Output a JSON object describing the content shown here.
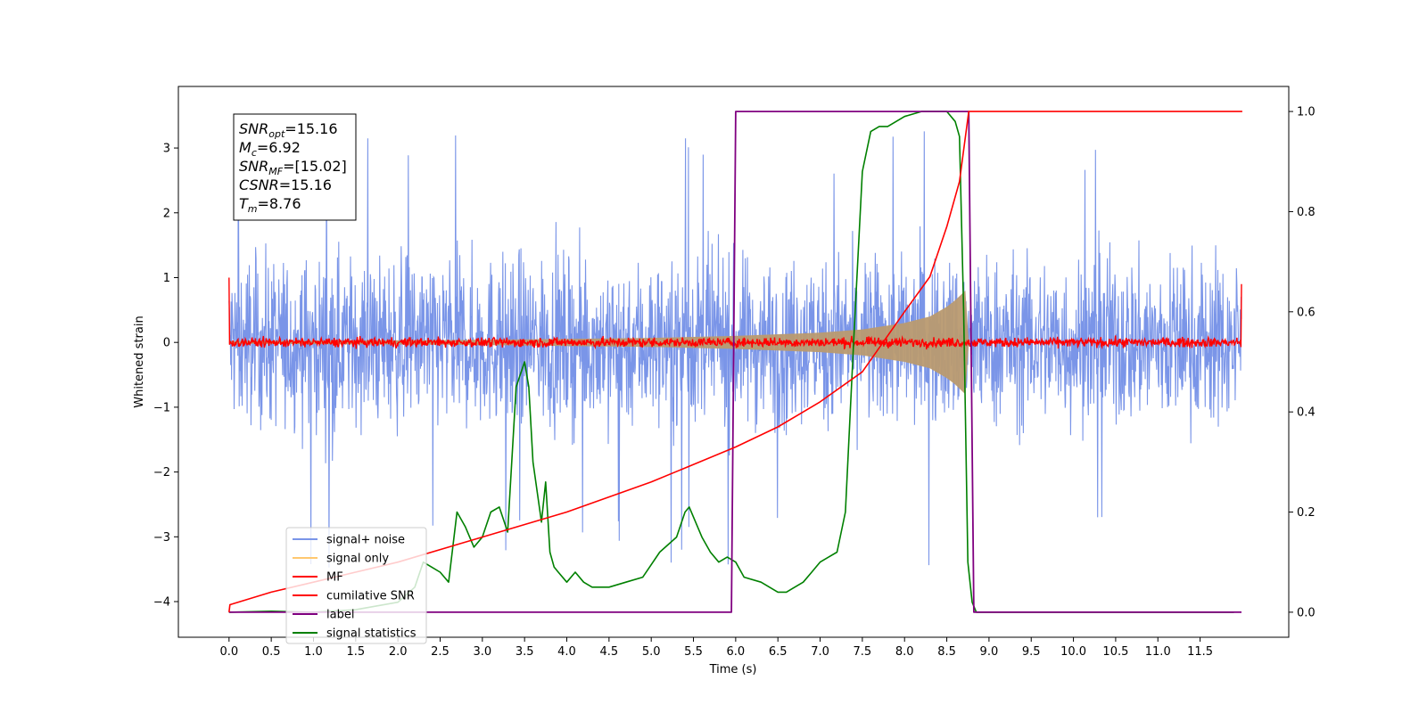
{
  "chart_data": {
    "type": "line",
    "xlabel": "Time (s)",
    "ylabel": "Whitened strain",
    "y2label": "",
    "xlim": [
      -0.6,
      12.55
    ],
    "ylim": [
      -4.55,
      3.95
    ],
    "y2lim": [
      -0.05,
      1.05
    ],
    "x_ticks": [
      0.0,
      0.5,
      1.0,
      1.5,
      2.0,
      2.5,
      3.0,
      3.5,
      4.0,
      4.5,
      5.0,
      5.5,
      6.0,
      6.5,
      7.0,
      7.5,
      8.0,
      8.5,
      9.0,
      9.5,
      10.0,
      10.5,
      11.0,
      11.5
    ],
    "x_tick_labels": [
      "0.0",
      "0.5",
      "1.0",
      "1.5",
      "2.0",
      "2.5",
      "3.0",
      "3.5",
      "4.0",
      "4.5",
      "5.0",
      "5.5",
      "6.0",
      "6.5",
      "7.0",
      "7.5",
      "8.0",
      "8.5",
      "9.0",
      "9.5",
      "10.0",
      "10.5",
      "11.0",
      "11.5"
    ],
    "y_ticks": [
      3,
      2,
      1,
      0,
      -1,
      -2,
      -3,
      -4
    ],
    "y_tick_labels": [
      "3",
      "2",
      "1",
      "0",
      "−1",
      "−2",
      "−3",
      "−4"
    ],
    "y2_ticks": [
      1.0,
      0.8,
      0.6,
      0.4,
      0.2,
      0.0
    ],
    "y2_tick_labels": [
      "1.0",
      "0.8",
      "0.6",
      "0.4",
      "0.2",
      "0.0"
    ],
    "grid": false,
    "legend_position": "lower-left",
    "annotation": {
      "lines": [
        {
          "main": "SNR",
          "sub": "opt",
          "value": "=15.16"
        },
        {
          "main": "M",
          "sub": "c",
          "value": "=6.92"
        },
        {
          "main": "SNR",
          "sub": "MF",
          "value": "=[15.02]"
        },
        {
          "main": "CSNR",
          "sub": "",
          "value": "=15.16"
        },
        {
          "main": "T",
          "sub": "m",
          "value": "=8.76"
        }
      ]
    },
    "series": [
      {
        "name": "signal+ noise",
        "axis": "left",
        "color": "#7a95e8",
        "kind": "noise_band",
        "x_range": [
          0.0,
          11.99
        ],
        "typical_amplitude": 1.5,
        "max_peaks": [
          3.6,
          -4.15
        ]
      },
      {
        "name": "signal only",
        "axis": "left",
        "color": "#ffc870",
        "kind": "chirp_envelope",
        "x": [
          0.0,
          3.0,
          5.0,
          6.0,
          7.0,
          7.5,
          8.0,
          8.3,
          8.5,
          8.6,
          8.72,
          8.76
        ],
        "amplitude": [
          0.02,
          0.04,
          0.07,
          0.1,
          0.15,
          0.2,
          0.3,
          0.4,
          0.55,
          0.65,
          0.8,
          0.0
        ]
      },
      {
        "name": "MF",
        "axis": "left",
        "color": "#ff0000",
        "kind": "noise_line",
        "x_range": [
          0.0,
          11.99
        ],
        "typical_amplitude": 0.07
      },
      {
        "name": "cumilative SNR",
        "axis": "right",
        "color": "#ff0000",
        "x": [
          0.0,
          0.01,
          0.5,
          1.0,
          2.0,
          3.0,
          4.0,
          5.0,
          6.0,
          6.5,
          7.0,
          7.5,
          8.0,
          8.3,
          8.5,
          8.65,
          8.76,
          12.0
        ],
        "y": [
          0.0,
          0.015,
          0.04,
          0.06,
          0.1,
          0.15,
          0.2,
          0.26,
          0.33,
          0.37,
          0.42,
          0.48,
          0.6,
          0.67,
          0.77,
          0.86,
          1.0,
          1.0
        ]
      },
      {
        "name": "label",
        "axis": "right",
        "color": "#800080",
        "x": [
          0.0,
          5.95,
          6.0,
          8.76,
          8.82,
          11.99
        ],
        "y": [
          0.0,
          0.0,
          1.0,
          1.0,
          0.0,
          0.0
        ]
      },
      {
        "name": "signal statistics",
        "axis": "right",
        "color": "#008000",
        "x": [
          0.0,
          0.5,
          1.0,
          1.5,
          2.0,
          2.2,
          2.3,
          2.4,
          2.5,
          2.6,
          2.7,
          2.8,
          2.9,
          3.0,
          3.1,
          3.2,
          3.3,
          3.4,
          3.5,
          3.55,
          3.6,
          3.7,
          3.75,
          3.8,
          3.85,
          3.9,
          4.0,
          4.1,
          4.2,
          4.3,
          4.5,
          4.7,
          4.9,
          5.1,
          5.3,
          5.4,
          5.45,
          5.6,
          5.7,
          5.8,
          5.9,
          6.0,
          6.1,
          6.3,
          6.5,
          6.6,
          6.7,
          6.8,
          6.9,
          7.0,
          7.1,
          7.2,
          7.3,
          7.4,
          7.5,
          7.6,
          7.7,
          7.8,
          8.0,
          8.2,
          8.3,
          8.4,
          8.5,
          8.6,
          8.65,
          8.7,
          8.75,
          8.8,
          8.85,
          9.0,
          10.0,
          11.0,
          11.9
        ],
        "y": [
          0.0,
          0.002,
          0.0,
          0.005,
          0.02,
          0.05,
          0.1,
          0.09,
          0.08,
          0.06,
          0.2,
          0.17,
          0.13,
          0.15,
          0.2,
          0.21,
          0.16,
          0.45,
          0.5,
          0.45,
          0.3,
          0.18,
          0.26,
          0.12,
          0.09,
          0.08,
          0.06,
          0.08,
          0.06,
          0.05,
          0.05,
          0.06,
          0.07,
          0.12,
          0.15,
          0.2,
          0.21,
          0.15,
          0.12,
          0.1,
          0.11,
          0.1,
          0.07,
          0.06,
          0.04,
          0.04,
          0.05,
          0.06,
          0.08,
          0.1,
          0.11,
          0.12,
          0.2,
          0.55,
          0.88,
          0.96,
          0.97,
          0.97,
          0.99,
          1.0,
          1.0,
          1.0,
          1.0,
          0.98,
          0.95,
          0.6,
          0.1,
          0.02,
          0.0,
          0.0,
          0.0,
          0.0,
          0.0
        ]
      }
    ]
  }
}
